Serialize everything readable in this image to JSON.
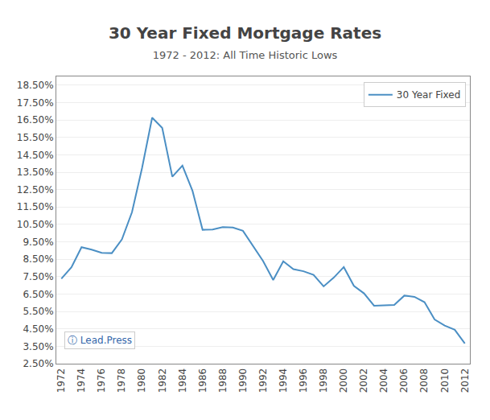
{
  "chart_data": {
    "type": "line",
    "title": "30 Year Fixed Mortgage Rates",
    "subtitle": "1972 - 2012: All Time Historic Lows",
    "x": [
      1972,
      1973,
      1974,
      1975,
      1976,
      1977,
      1978,
      1979,
      1980,
      1981,
      1982,
      1983,
      1984,
      1985,
      1986,
      1987,
      1988,
      1989,
      1990,
      1991,
      1992,
      1993,
      1994,
      1995,
      1996,
      1997,
      1998,
      1999,
      2000,
      2001,
      2002,
      2003,
      2004,
      2005,
      2006,
      2007,
      2008,
      2009,
      2010,
      2011,
      2012
    ],
    "series": [
      {
        "name": "30 Year Fixed",
        "color": "#4b8fc4",
        "values": [
          7.38,
          8.04,
          9.19,
          9.05,
          8.87,
          8.85,
          9.64,
          11.2,
          13.74,
          16.63,
          16.04,
          13.24,
          13.88,
          12.43,
          10.19,
          10.21,
          10.34,
          10.32,
          10.13,
          9.25,
          8.39,
          7.31,
          8.38,
          7.93,
          7.81,
          7.6,
          6.94,
          7.44,
          8.05,
          6.97,
          6.54,
          5.83,
          5.84,
          5.87,
          6.41,
          6.34,
          6.03,
          5.04,
          4.69,
          4.45,
          3.66
        ]
      }
    ],
    "xlim": [
      1971.5,
      2012.5
    ],
    "xticks": [
      1972,
      1974,
      1976,
      1978,
      1980,
      1982,
      1984,
      1986,
      1988,
      1990,
      1992,
      1994,
      1996,
      1998,
      2000,
      2002,
      2004,
      2006,
      2008,
      2010,
      2012
    ],
    "ylim": [
      2.5,
      19.0
    ],
    "yticks": [
      {
        "value": 2.5,
        "label": "2.50%"
      },
      {
        "value": 3.5,
        "label": "3.50%"
      },
      {
        "value": 4.5,
        "label": "4.50%"
      },
      {
        "value": 5.5,
        "label": "5.50%"
      },
      {
        "value": 6.5,
        "label": "6.50%"
      },
      {
        "value": 7.5,
        "label": "7.50%"
      },
      {
        "value": 8.5,
        "label": "8.50%"
      },
      {
        "value": 9.5,
        "label": "9.50%"
      },
      {
        "value": 10.5,
        "label": "10.50%"
      },
      {
        "value": 11.5,
        "label": "11.50%"
      },
      {
        "value": 12.5,
        "label": "12.50%"
      },
      {
        "value": 13.5,
        "label": "13.50%"
      },
      {
        "value": 14.5,
        "label": "14.50%"
      },
      {
        "value": 15.5,
        "label": "15.50%"
      },
      {
        "value": 16.5,
        "label": "16.50%"
      },
      {
        "value": 17.5,
        "label": "17.50%"
      },
      {
        "value": 18.5,
        "label": "18.50%"
      }
    ],
    "grid": "y",
    "legend": "upper right",
    "annotations": [
      "ⓘ Lead.Press"
    ]
  }
}
